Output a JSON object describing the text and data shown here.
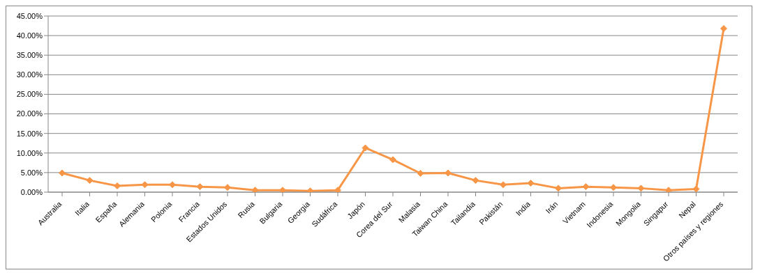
{
  "chart_data": {
    "type": "line",
    "categories": [
      "Australia",
      "Italia",
      "España",
      "Alemania",
      "Polonia",
      "Francia",
      "Estados Unidos",
      "Rusia",
      "Bulgaria",
      "Georgia",
      "Sudáfrica",
      "Japón",
      "Corea del Sur",
      "Malasia",
      "Taiwan China",
      "Tailandia",
      "Pakistán",
      "India",
      "Irán",
      "Vietnam",
      "Indonesia",
      "Mongolia",
      "Singapur",
      "Nepal",
      "Otros países y regiones"
    ],
    "series": [
      {
        "color": "#f79646",
        "values": [
          4.9,
          3.0,
          1.6,
          1.9,
          1.9,
          1.4,
          1.2,
          0.5,
          0.5,
          0.3,
          0.5,
          11.3,
          8.3,
          4.8,
          4.9,
          3.0,
          1.9,
          2.3,
          1.0,
          1.4,
          1.2,
          1.0,
          0.5,
          0.8,
          41.8
        ]
      }
    ],
    "ylim": [
      0,
      45
    ],
    "yticks": [
      {
        "value": 0,
        "label": "0.00%"
      },
      {
        "value": 5,
        "label": "5.00%"
      },
      {
        "value": 10,
        "label": "10.00%"
      },
      {
        "value": 15,
        "label": "15.00%"
      },
      {
        "value": 20,
        "label": "20.00%"
      },
      {
        "value": 25,
        "label": "25.00%"
      },
      {
        "value": 30,
        "label": "30.00%"
      },
      {
        "value": 35,
        "label": "35.00%"
      },
      {
        "value": 40,
        "label": "40.00%"
      },
      {
        "value": 45,
        "label": "45.00%"
      }
    ],
    "grid": "y",
    "legend": false,
    "marker": "diamond",
    "line_style": "solid"
  }
}
